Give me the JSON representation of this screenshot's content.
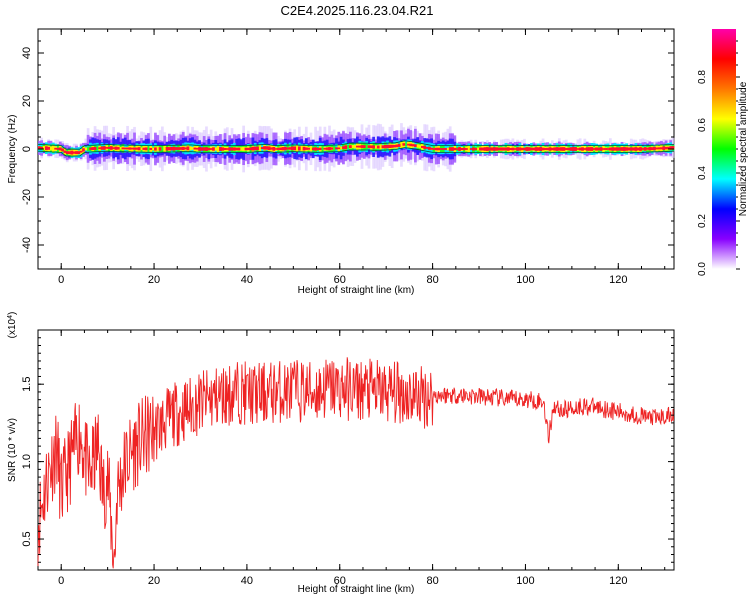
{
  "title": "C2E4.2025.116.23.04.R21",
  "chart_data": [
    {
      "type": "heatmap",
      "xlabel": "Height of straight line (km)",
      "ylabel": "Frequency (Hz)",
      "xlim": [
        -5,
        132
      ],
      "ylim": [
        -50,
        50
      ],
      "x_ticks": [
        0,
        20,
        40,
        60,
        80,
        100,
        120
      ],
      "y_ticks": [
        -40,
        -20,
        0,
        20,
        40
      ],
      "colorbar": {
        "label": "Normalized spectral amplitude",
        "range": [
          0,
          1
        ],
        "ticks": [
          0.0,
          0.2,
          0.4,
          0.6,
          0.8
        ],
        "colors": [
          "#ffffff",
          "#8800ff",
          "#0000ff",
          "#00ffff",
          "#00ff00",
          "#ffff00",
          "#ff7700",
          "#ff0000",
          "#ff00aa"
        ]
      },
      "ridge": {
        "color_core": "#ff1030",
        "x": [
          -5,
          0,
          1,
          4,
          5,
          10,
          12,
          20,
          28,
          30,
          36,
          40,
          44,
          46,
          50,
          55,
          60,
          62,
          66,
          68,
          72,
          74,
          76,
          80,
          85,
          90,
          100,
          110,
          120,
          125,
          132
        ],
        "y": [
          0.5,
          0,
          -1.5,
          -1.5,
          0,
          0.5,
          0.3,
          0.0,
          0.3,
          0.0,
          0.0,
          0.0,
          0.5,
          0.0,
          0.3,
          0.0,
          0.3,
          1.0,
          1.0,
          0.8,
          1.2,
          2.0,
          1.5,
          0.0,
          0.0,
          0.0,
          0.0,
          0.0,
          0.0,
          0.0,
          0.5
        ]
      }
    },
    {
      "type": "line",
      "xlabel": "Height of straight line (km)",
      "ylabel": "SNR (10 * v/v)",
      "multiplier_label": "(x10",
      "multiplier_exp": "4",
      "multiplier_close": ")",
      "xlim": [
        -5,
        132
      ],
      "ylim": [
        0.3,
        1.85
      ],
      "x_ticks": [
        0,
        20,
        40,
        60,
        80,
        100,
        120
      ],
      "y_ticks": [
        0.5,
        1.0,
        1.5
      ],
      "y_tick_labels": [
        "0.5",
        "1.0",
        "1.5"
      ],
      "series": [
        {
          "color": "#ee2222",
          "x": [
            -5,
            -3,
            -1,
            0,
            2,
            4,
            6,
            8,
            9,
            10,
            11,
            11.5,
            12,
            14,
            16,
            18,
            20,
            22,
            24,
            26,
            28,
            30,
            34,
            38,
            42,
            46,
            50,
            54,
            58,
            62,
            66,
            70,
            74,
            78,
            82,
            86,
            90,
            94,
            98,
            102,
            104,
            105,
            106,
            108,
            112,
            116,
            120,
            124,
            128,
            132
          ],
          "y": [
            0.6,
            0.9,
            1.1,
            0.8,
            1.0,
            1.2,
            0.9,
            1.1,
            0.8,
            0.9,
            0.5,
            0.35,
            0.8,
            1.0,
            1.1,
            1.15,
            1.2,
            1.25,
            1.3,
            1.32,
            1.35,
            1.38,
            1.42,
            1.45,
            1.43,
            1.45,
            1.46,
            1.45,
            1.48,
            1.47,
            1.46,
            1.45,
            1.44,
            1.42,
            1.43,
            1.43,
            1.42,
            1.41,
            1.4,
            1.4,
            1.38,
            1.15,
            1.36,
            1.33,
            1.36,
            1.35,
            1.32,
            1.3,
            1.28,
            1.3
          ]
        }
      ]
    }
  ]
}
